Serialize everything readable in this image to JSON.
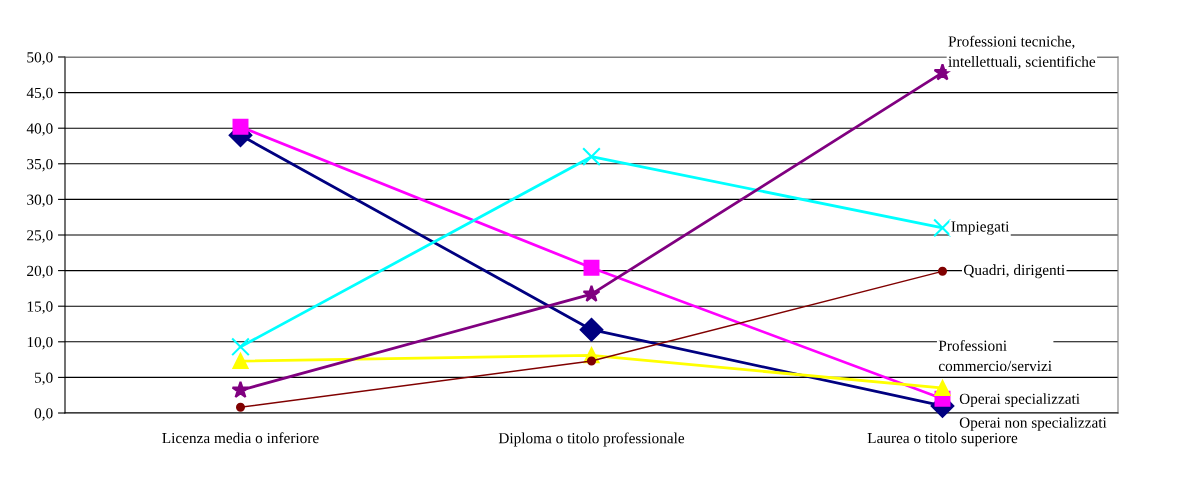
{
  "chart_data": {
    "type": "line",
    "categories": [
      "Licenza media o inferiore",
      "Diploma o titolo professionale",
      "Laurea o titolo superiore"
    ],
    "ylim": [
      0,
      50
    ],
    "yticks": [
      {
        "value": 0,
        "label": "0,0"
      },
      {
        "value": 5,
        "label": "5,0"
      },
      {
        "value": 10,
        "label": "10,0"
      },
      {
        "value": 15,
        "label": "15,0"
      },
      {
        "value": 20,
        "label": "20,0"
      },
      {
        "value": 25,
        "label": "25,0"
      },
      {
        "value": 30,
        "label": "30,0"
      },
      {
        "value": 35,
        "label": "35,0"
      },
      {
        "value": 40,
        "label": "40,0"
      },
      {
        "value": 45,
        "label": "45,0"
      },
      {
        "value": 50,
        "label": "50,0"
      }
    ],
    "grid": "y",
    "legend": false,
    "series": [
      {
        "name": "Operai non specializzati",
        "color": "#000080",
        "marker": "diamond",
        "values": [
          39.0,
          11.7,
          1.0
        ]
      },
      {
        "name": "Operai specializzati",
        "color": "#ff00ff",
        "marker": "square",
        "values": [
          40.2,
          20.4,
          2.0
        ]
      },
      {
        "name": "Professioni commercio/servizi",
        "color": "#ffff00",
        "marker": "triangle",
        "values": [
          7.3,
          8.1,
          3.5
        ]
      },
      {
        "name": "Impiegati",
        "color": "#00ffff",
        "marker": "cross",
        "values": [
          9.3,
          36.0,
          26.0
        ]
      },
      {
        "name": "Professioni tecniche, intellettuali, scientifiche",
        "color": "#800080",
        "marker": "star",
        "values": [
          3.2,
          16.7,
          47.8
        ]
      },
      {
        "name": "Quadri, dirigenti",
        "color": "#800000",
        "marker": "circle",
        "values": [
          0.8,
          7.3,
          19.9
        ]
      }
    ]
  }
}
